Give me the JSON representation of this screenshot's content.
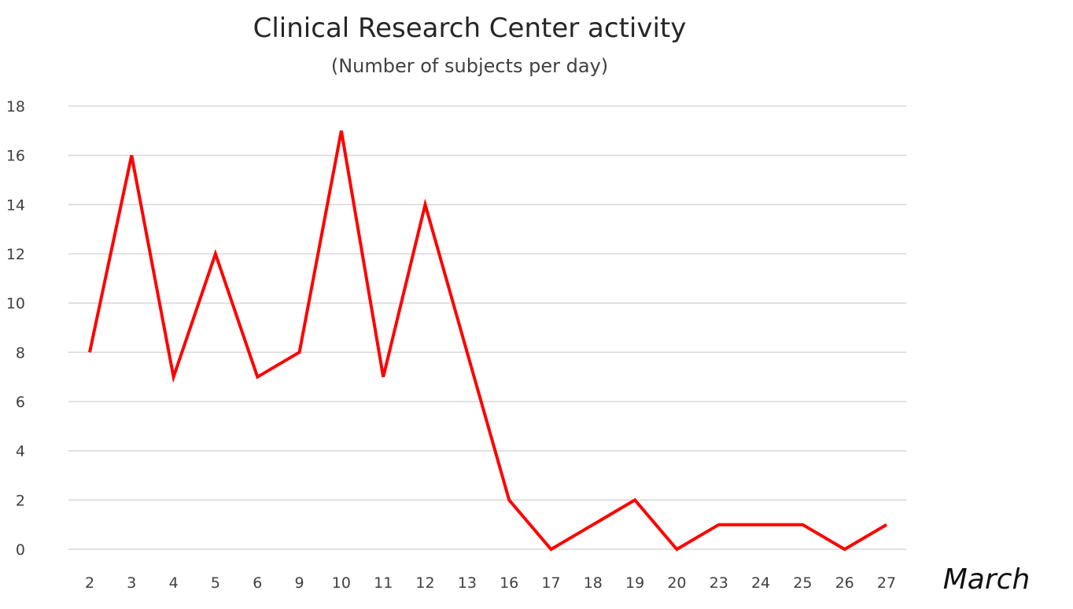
{
  "chart_data": {
    "type": "line",
    "title": "Clinical Research Center activity",
    "subtitle": "(Number of subjects per day)",
    "xlabel": "March",
    "ylabel": "",
    "categories": [
      "2",
      "3",
      "4",
      "5",
      "6",
      "9",
      "10",
      "11",
      "12",
      "13",
      "16",
      "17",
      "18",
      "19",
      "20",
      "23",
      "24",
      "25",
      "26",
      "27"
    ],
    "series": [
      {
        "name": "",
        "values": [
          8,
          16,
          7,
          12,
          7,
          8,
          17,
          7,
          14,
          8,
          2,
          0,
          1,
          2,
          0,
          1,
          1,
          1,
          0,
          1
        ],
        "color": "#ff0000"
      }
    ],
    "ylim": [
      0,
      18
    ],
    "yticks": [
      0,
      2,
      4,
      6,
      8,
      10,
      12,
      14,
      16,
      18
    ],
    "grid": "horizontal",
    "legend": "none"
  }
}
